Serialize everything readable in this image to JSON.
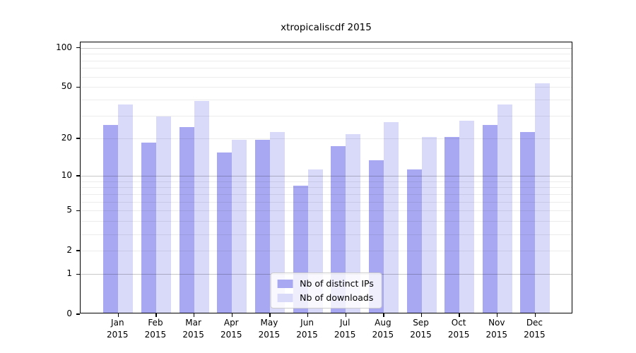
{
  "chart_data": {
    "type": "bar",
    "title": "xtropicaliscdf 2015",
    "categories": [
      {
        "month": "Jan",
        "year": "2015"
      },
      {
        "month": "Feb",
        "year": "2015"
      },
      {
        "month": "Mar",
        "year": "2015"
      },
      {
        "month": "Apr",
        "year": "2015"
      },
      {
        "month": "May",
        "year": "2015"
      },
      {
        "month": "Jun",
        "year": "2015"
      },
      {
        "month": "Jul",
        "year": "2015"
      },
      {
        "month": "Aug",
        "year": "2015"
      },
      {
        "month": "Sep",
        "year": "2015"
      },
      {
        "month": "Oct",
        "year": "2015"
      },
      {
        "month": "Nov",
        "year": "2015"
      },
      {
        "month": "Dec",
        "year": "2015"
      }
    ],
    "series": [
      {
        "name": "Nb of distinct IPs",
        "color": "#a8a8f2",
        "values": [
          25,
          18,
          24,
          15,
          19,
          8,
          17,
          13,
          11,
          20,
          25,
          22
        ]
      },
      {
        "name": "Nb of downloads",
        "color": "#d9d9fa",
        "values": [
          36,
          29,
          38,
          19,
          22,
          11,
          21,
          26,
          20,
          27,
          36,
          52
        ]
      }
    ],
    "yscale": "log1p",
    "ylim": [
      0,
      100
    ],
    "yticks": [
      {
        "value": 0,
        "label": "0"
      },
      {
        "value": 1,
        "label": "1"
      },
      {
        "value": 2,
        "label": "2"
      },
      {
        "value": 5,
        "label": "5"
      },
      {
        "value": 10,
        "label": "10"
      },
      {
        "value": 20,
        "label": "20"
      },
      {
        "value": 50,
        "label": "50"
      },
      {
        "value": 100,
        "label": "100"
      }
    ],
    "grid": {
      "major_values": [
        1,
        10,
        100
      ],
      "minor_values": [
        2,
        3,
        4,
        5,
        6,
        7,
        8,
        9,
        20,
        30,
        40,
        50,
        60,
        70,
        80,
        90
      ]
    },
    "legend_position": "lower center"
  }
}
